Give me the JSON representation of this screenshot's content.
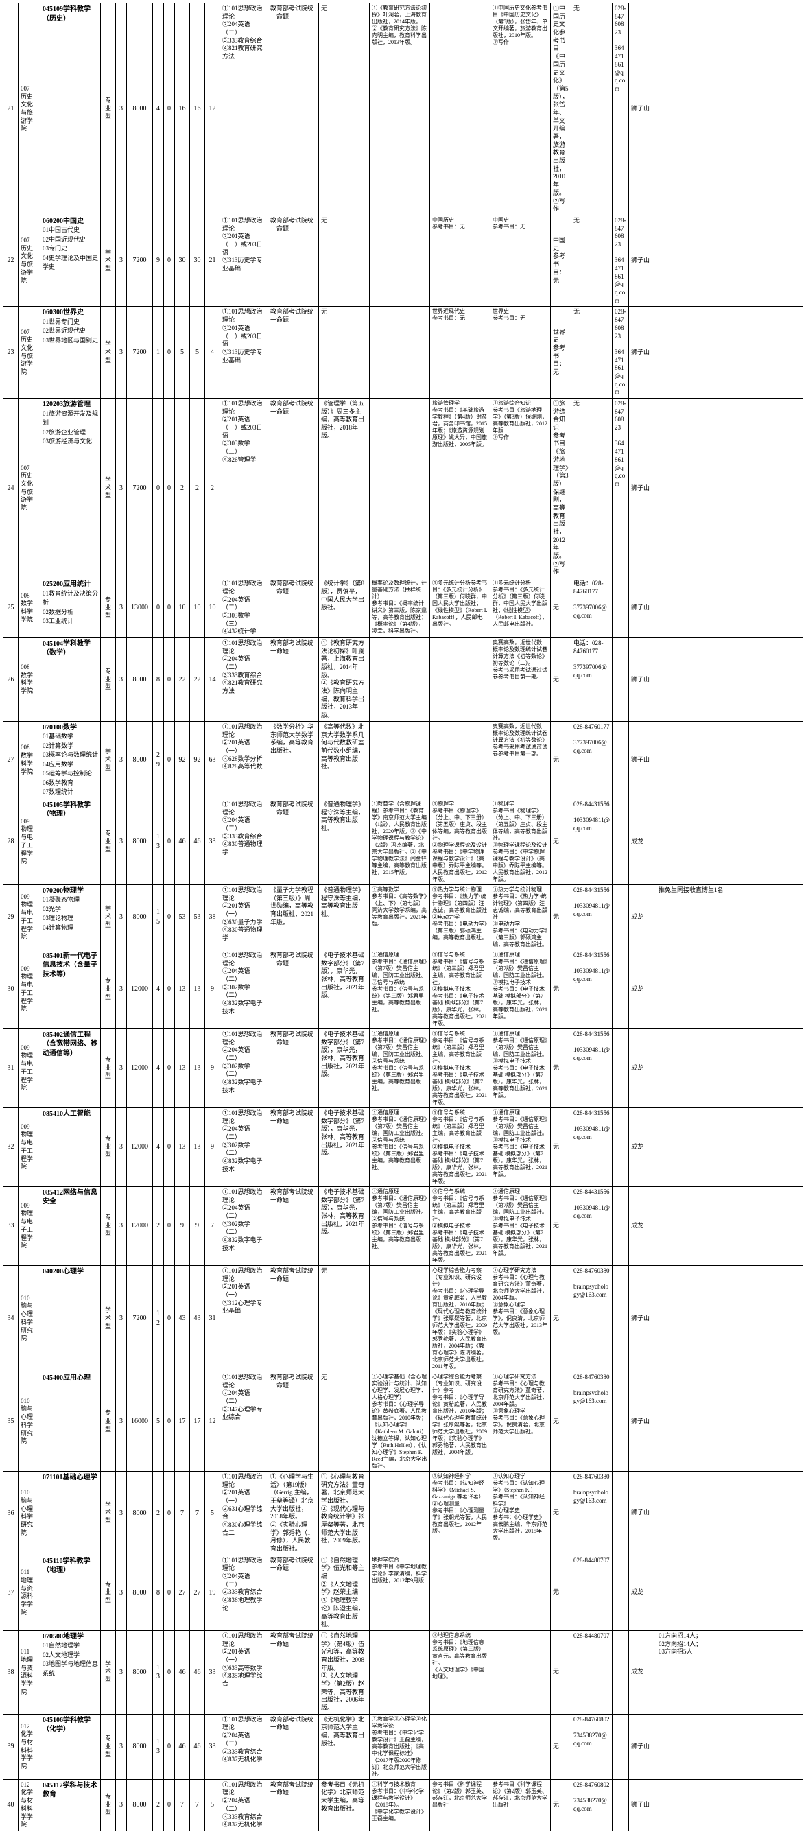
{
  "cols": {
    "w": [
      22,
      32,
      88,
      22,
      16,
      38,
      16,
      16,
      22,
      22,
      22,
      70,
      74,
      74,
      88,
      88,
      88,
      30,
      60,
      24,
      40
    ]
  },
  "rows": [
    {
      "n": "21",
      "dept": "007\n历史文化与旅游学院",
      "major_title": "045109学科教学（历史）",
      "major_sub": "",
      "type": "专业型",
      "yr": "3",
      "fee": "8000",
      "a": "4",
      "b": "0",
      "c": "16",
      "d": "16",
      "e": "12",
      "exam": "①101思想政治理论\n②204英语（二）\n③333教育综合\n④821教育研究方法",
      "c13": "教育部考试院统一命题",
      "c14": "无",
      "c15": "①《教育研究方法论初探》叶澜著，上海教育出版社，2014年版。\n②《教育研究方法》陈向明主编，教育科学出版社，2013年版。",
      "c16": "",
      "c17": "①中国历史文化参考书目《中国历史文化》（第5版），张岱年、单文开编著，旅游教育出版社，2010年版。\n②写作",
      "c18": "①中国历史文化参考书目《中国历史文化》（第5版），张岱年、单文开编著，旅游教育出版社，2010年版。\n②写作",
      "c19": "无",
      "c20": "028-84760823\n\n364471861@qq.com",
      "c21": "狮子山",
      "c22": ""
    },
    {
      "n": "22",
      "dept": "007\n历史文化与旅游学院",
      "major_title": "060200中国史",
      "major_sub": "01中国古代史\n02中国近现代史\n03专门史\n04史学理论及中国史学史",
      "type": "学术型",
      "yr": "3",
      "fee": "7200",
      "a": "9",
      "b": "0",
      "c": "30",
      "d": "30",
      "e": "21",
      "exam": "①101思想政治理论\n②201英语（一）或203日语\n③313历史学专业基础",
      "c13": "教育部考试院统一命题",
      "c14": "无",
      "c15": "",
      "c16": "中国历史\n参考书目：无",
      "c17": "中国史\n参考书目：无",
      "c18": "中国史\n参考书目：无",
      "c19": "无",
      "c20": "028-84760823\n\n364471861@qq.com",
      "c21": "狮子山",
      "c22": ""
    },
    {
      "n": "23",
      "dept": "007\n历史文化与旅游学院",
      "major_title": "060300世界史",
      "major_sub": "01世界专门史\n02世界近现代史\n03世界地区与国别史",
      "type": "学术型",
      "yr": "3",
      "fee": "7200",
      "a": "1",
      "b": "0",
      "c": "5",
      "d": "5",
      "e": "4",
      "exam": "①101思想政治理论\n②201英语（一）或203日语\n③313历史学专业基础",
      "c13": "教育部考试院统一命题",
      "c14": "无",
      "c15": "",
      "c16": "世界近现代史\n参考书目：无",
      "c17": "世界史\n参考书目：无",
      "c18": "世界史\n参考书目：无",
      "c19": "无",
      "c20": "028-84760823\n\n364471861@qq.com",
      "c21": "狮子山",
      "c22": ""
    },
    {
      "n": "24",
      "dept": "007\n历史文化与旅游学院",
      "major_title": "120203旅游管理",
      "major_sub": "01旅游资源开发及规划\n02旅游企业管理\n03旅游经济与文化",
      "type": "学术型",
      "yr": "3",
      "fee": "7200",
      "a": "0",
      "b": "0",
      "c": "2",
      "d": "2",
      "e": "2",
      "exam": "①101思想政治理论\n②201英语（一）或203日语\n③303数学（三）\n④826管理学",
      "c13": "教育部考试院统一命题",
      "c14": "《管理学（第五版）》周三多主编，高等教育出版社，2018年版。",
      "c15": "",
      "c16": "旅游管理学\n参考书目：《基础旅游学教程》（第4版）谢彦君，商务印书馆，2015年版；《旅游资源规划原理》姚大异，中国旅游出版社，2005年版。",
      "c17": "①旅游综合知识\n参考书目《旅游地理学》（第3版）保继刚，高等教育出版社，2012年版\n②写作",
      "c18": "①旅游综合知识\n参考书目《旅游地理学》（第3版）保继刚，高等教育出版社，2012年版。\n②写作",
      "c19": "无",
      "c20": "028-84760823\n\n364471861@qq.com",
      "c21": "狮子山",
      "c22": ""
    },
    {
      "n": "25",
      "dept": "008\n数学科学学院",
      "major_title": "025200应用统计",
      "major_sub": "01教育统计及决策分析\n02数据分析\n03工业统计",
      "type": "专业型",
      "yr": "3",
      "fee": "13000",
      "a": "0",
      "b": "0",
      "c": "10",
      "d": "10",
      "e": "10",
      "exam": "①101思想政治理论\n②204英语（二）\n③303数学（三）\n④432统计学",
      "c13": "教育部考试院统一命题",
      "c14": "《统计学》（第8版），贾俊平，中国人民大学出版社。",
      "c15": "概率论及数理统计，计量基础方法（抽样统计）\n参考书目：《概率统计讲义》第三版，陈家鼎等，高等教育出版社；《概率论》（第4版），凌幸，科学出版社。",
      "c16": "①多元统计分析参考书目：《多元统计分析》（第三版）何晓群，中国人民大学出版社；《线性模型》（Robert I. Kabacoff），人民邮电出版社。",
      "c17": "①多元统计分析\n参考书目：《多元统计分析》（第三版）何晓群，中国人民大学出版社；《线性模型》（Robert I. Kabacoff），人民邮电出版社。",
      "c18": "无",
      "c19": "电话：028-84760177\n\n377397006@qq.com",
      "c20": "",
      "c21": "狮子山",
      "c22": ""
    },
    {
      "n": "26",
      "dept": "008\n数学科学学院",
      "major_title": "045104学科教学（数学）",
      "major_sub": "",
      "type": "专业型",
      "yr": "3",
      "fee": "8000",
      "a": "8",
      "b": "0",
      "c": "22",
      "d": "22",
      "e": "14",
      "exam": "①101思想政治理论\n②204英语（二）\n③333教育综合\n④821教育研究方法",
      "c13": "教育部考试院统一命题",
      "c14": "①《教育研究方法论初探》叶澜著，上海教育出版社，2014年版。\n②《教育研究方法》陈向明主编，教育科学出版社，2013年版。",
      "c15": "",
      "c16": "",
      "c17": "奥赛高数，近世代数\n概率论及数理统计试卷计算方法《初等数论》初等数论（二）。\n参考书采用考试通过试卷参考书目第一部。",
      "c18": "无",
      "c19": "电话：028-84760177\n\n377397006@qq.com",
      "c20": "",
      "c21": "狮子山",
      "c22": ""
    },
    {
      "n": "27",
      "dept": "008\n数学科学学院",
      "major_title": "070100数学",
      "major_sub": "01基础数学\n02计算数学\n03概率论与数理统计\n04应用数学\n05运筹学与控制论\n06数学教育\n07数理统计",
      "type": "学术型",
      "yr": "3",
      "fee": "8000",
      "a": "29",
      "b": "0",
      "c": "92",
      "d": "92",
      "e": "63",
      "exam": "①101思想政治理论\n②201英语（一）\n③628数学分析\n④828高等代数",
      "c13": "《数学分析》华东师范大学数学系编，高等教育出版社。",
      "c14": "《高等代数》北京大学数学系几何与代数教研室前代数小组编，高等教育出版社。",
      "c15": "",
      "c16": "",
      "c17": "奥赛高数，近世代数\n概率论及数理统计试卷计算方法《初等数论》\n参考书采用考试通过试卷参考书目第一部。",
      "c18": "无",
      "c19": "028-84760177\n\n377397006@qq.com",
      "c20": "",
      "c21": "狮子山",
      "c22": ""
    },
    {
      "n": "28",
      "dept": "009\n物理与电子工程学院",
      "major_title": "045105学科教学（物理）",
      "major_sub": "",
      "type": "专业型",
      "yr": "3",
      "fee": "8000",
      "a": "13",
      "b": "0",
      "c": "46",
      "d": "46",
      "e": "33",
      "exam": "①101思想政治理论\n②204英语（二）\n③333教育综合\n④830普通物理学",
      "c13": "教育部考试院统一命题",
      "c14": "《普通物理学》程守洙等主编，高等教育出版社。",
      "c15": "①教育学（含物理课程）参考书目：《教育学》南京师范大学主编（1版），人民教育出版社，2020年版。②《中学物理课程与教学论》（2版）冯杰编著，北京大学出版社。③《中学物理教学法》闫金铎等主编，高等教育出版社，2015年版。",
      "c16": "①物理学\n参考书目《物理学》（分上、中、下三册）（第五版）庄贞、段主体等编，高等教育出版社。\n②物理学课程论及设计\n参考书目：《中学物理课程与教学设计》（高中版）乔际平主编等。人民教育出版社，2012年版。",
      "c17": "①物理学\n参考书目《物理学》（分上、中、下三册）（第五版）庄贞、段主体等编，高等教育出版社。\n②物理学课程论及设计\n参考书目：《中学物理课程与教学设计》（高中版）乔际平主编等。人民教育出版社，2012年版。",
      "c18": "无",
      "c19": "028-84431556\n\n1033094811@qq.com",
      "c20": "",
      "c21": "成龙",
      "c22": ""
    },
    {
      "n": "29",
      "dept": "009\n物理与电子工程学院",
      "major_title": "070200物理学",
      "major_sub": "01凝聚态物理\n02光学\n03理论物理\n04计算物理",
      "type": "学术型",
      "yr": "3",
      "fee": "8000",
      "a": "15",
      "b": "0",
      "c": "53",
      "d": "53",
      "e": "38",
      "exam": "①101思想政治理论\n②201英语（一）\n③630量子力学\n④830普通物理学",
      "c13": "《量子力学教程（第三版）》周世勋编，高等教育出版社，2021年版。",
      "c14": "《普通物理学》程守洙等主编，高等教育出版社。",
      "c15": "①高等数学\n参考书目：《高等数学》（上、下）（第七版）同济大学数学系编，高等教育出版社，2021年版。",
      "c16": "①热力学与统计物理\n参考书目：《热力学·统计物理》（第四版）汪志诚，高等教育出版社\n②电动力学\n参考书目：《电动力学》（第三版）郭硕鸿主编，高等教育出版社。",
      "c17": "①热力学与统计物理\n参考书目：《热力学·统计物理》（第四版）汪志诚编，高等教育出版社\n②电动力学\n参考书目：《电动力学》（第三版）郭硕鸿主编，高等教育出版社。",
      "c18": "无",
      "c19": "028-84431556\n\n1033094811@qq.com",
      "c20": "",
      "c21": "成龙",
      "c22": "推免生同接收直博生1名"
    },
    {
      "n": "30",
      "dept": "009\n物理与电子工程学院",
      "major_title": "085401新一代电子信息技术（含量子技术等）",
      "major_sub": "",
      "type": "专业型",
      "yr": "3",
      "fee": "12000",
      "a": "4",
      "b": "0",
      "c": "13",
      "d": "13",
      "e": "9",
      "exam": "①101思想政治理论\n②204英语（二）\n③302数学（二）\n④832数字电子技术",
      "c13": "教育部考试院统一命题",
      "c14": "《电子技术基础 数字部分》（第7版），康华光，张林，高等教育出版社，2021年版。",
      "c15": "①通信原理\n参考书目：《通信原理》（第7版）樊昌信主编，国防工业出版社。\n②信号与系统\n参考书目：《信号与系统》（第三版）郑君里主编，高等教育出版社。",
      "c16": "①信号与系统\n参考书目：《信号与系统》（第三版）郑君里主编，高等教育出版社。\n②模拟电子技术\n参考书目：《电子技术基础 模拟部分》（第7版），康华光，张林，高等教育出版社，2021年版。",
      "c17": "①通信原理\n参考书目：《通信原理》（第7版）樊昌信主编，国防工业出版社。\n②模拟电子技术\n参考书目：《电子技术基础 模拟部分》（第7版），康华光，张林，高等教育出版社，2021年版。",
      "c18": "无",
      "c19": "028-84431556\n\n1033094811@qq.com",
      "c20": "",
      "c21": "成龙",
      "c22": ""
    },
    {
      "n": "31",
      "dept": "009\n物理与电子工程学院",
      "major_title": "085402通信工程（含宽带网络、移动通信等）",
      "major_sub": "",
      "type": "专业型",
      "yr": "3",
      "fee": "12000",
      "a": "4",
      "b": "0",
      "c": "13",
      "d": "13",
      "e": "9",
      "exam": "①101思想政治理论\n②204英语（二）\n③302数学（二）\n④832数字电子技术",
      "c13": "教育部考试院统一命题",
      "c14": "《电子技术基础 数字部分》（第7版），康华光，张林，高等教育出版社，2021年版。",
      "c15": "①通信原理\n参考书目：《通信原理》（第7版）樊昌信主编，国防工业出版社。\n②信号与系统\n参考书目：《信号与系统》（第三版）郑君里主编，高等教育出版社。",
      "c16": "①信号与系统\n参考书目：《信号与系统》（第三版）郑君里主编，高等教育出版社。\n②模拟电子技术\n参考书目：《电子技术基础 模拟部分》（第7版），康华光，张林，高等教育出版社，2021年版。",
      "c17": "①通信原理\n参考书目：《通信原理》（第7版）樊昌信主编，国防工业出版社。\n②模拟电子技术\n参考书目：《电子技术基础 模拟部分》（第7版），康华光，张林，高等教育出版社，2021年版。",
      "c18": "无",
      "c19": "028-84431556\n\n1033094811@qq.com",
      "c20": "",
      "c21": "成龙",
      "c22": ""
    },
    {
      "n": "32",
      "dept": "009\n物理与电子工程学院",
      "major_title": "085410人工智能",
      "major_sub": "",
      "type": "专业型",
      "yr": "3",
      "fee": "12000",
      "a": "4",
      "b": "0",
      "c": "13",
      "d": "13",
      "e": "9",
      "exam": "①101思想政治理论\n②204英语（二）\n③302数学（二）\n④832数字电子技术",
      "c13": "教育部考试院统一命题",
      "c14": "《电子技术基础 数字部分》（第7版），康华光，张林，高等教育出版社，2021年版。",
      "c15": "①通信原理\n参考书目：《通信原理》（第7版）樊昌信主编，国防工业出版社。\n②信号与系统\n参考书目：《信号与系统》（第三版）郑君里主编，高等教育出版社。",
      "c16": "①信号与系统\n参考书目：《信号与系统》（第三版）郑君里主编，高等教育出版社。\n②模拟电子技术\n参考书目：《电子技术基础 模拟部分》（第7版），康华光，张林，高等教育出版社，2021年版。",
      "c17": "①通信原理\n参考书目：《通信原理》（第7版）樊昌信主编，国防工业出版社。\n②模拟电子技术\n参考书目：《电子技术基础 模拟部分》（第7版），康华光，张林，高等教育出版社，2021年版。",
      "c18": "无",
      "c19": "028-84431556\n\n1033094811@qq.com",
      "c20": "",
      "c21": "成龙",
      "c22": ""
    },
    {
      "n": "33",
      "dept": "009\n物理与电子工程学院",
      "major_title": "085412网络与信息安全",
      "major_sub": "",
      "type": "专业型",
      "yr": "3",
      "fee": "12000",
      "a": "2",
      "b": "0",
      "c": "9",
      "d": "9",
      "e": "7",
      "exam": "①101思想政治理论\n②204英语（二）\n③302数学（二）\n④832数字电子技术",
      "c13": "教育部考试院统一命题",
      "c14": "《电子技术基础 数字部分》（第7版），康华光，张林，高等教育出版社，2021年版。",
      "c15": "①通信原理\n参考书目：《通信原理》（第7版）樊昌信主编，国防工业出版社。\n②信号与系统\n参考书目：《信号与系统》（第三版）郑君里主编，高等教育出版社。",
      "c16": "①信号与系统\n参考书目：《信号与系统》（第三版）郑君里主编，高等教育出版社。\n②模拟电子技术\n参考书目：《电子技术基础 模拟部分》（第7版），康华光，张林，高等教育出版社，2021年版。",
      "c17": "①通信原理\n参考书目：《通信原理》（第7版）樊昌信主编，国防工业出版社。\n②模拟电子技术\n参考书目：《电子技术基础 模拟部分》（第7版），康华光，张林，高等教育出版社，2021年版。",
      "c18": "无",
      "c19": "028-84431556\n\n1033094811@qq.com",
      "c20": "",
      "c21": "成龙",
      "c22": ""
    },
    {
      "n": "34",
      "dept": "010\n脑与心理科学研究院",
      "major_title": "040200心理学",
      "major_sub": "",
      "type": "学术型",
      "yr": "3",
      "fee": "7200",
      "a": "12",
      "b": "0",
      "c": "43",
      "d": "43",
      "e": "31",
      "exam": "①101思想政治理论\n②201英语（一）\n③312心理学专业基础",
      "c13": "教育部考试院统一命题",
      "c14": "无",
      "c15": "",
      "c16": "心理学综合能力考察（专业知识、研究设计）\n参考书目：《心理学导论》黄希庭著，人民教育出版社，2010年版；《现代心理与教育统计学》张厚粲等著，北京师范大学出版社，2009年版；《实验心理学》郭秀艳著，人民教育出版社，2004年版；《教育心理学》陈琦编著，北京师范大学出版社，2011年版。",
      "c17": "①心理学研究方法\n参考书目：《心理与教育研究方法》董奇著，北京师范大学出版社，2004年版。\n②意象心理学\n参考书目：《意象心理学》，倪良清，北京师范大学出版社，2013年版。",
      "c18": "无",
      "c19": "028-84760380\n\nbrainpsychology@163.com",
      "c20": "",
      "c21": "狮子山",
      "c22": ""
    },
    {
      "n": "35",
      "dept": "010\n脑与心理科学研究院",
      "major_title": "045400应用心理",
      "major_sub": "",
      "type": "专业型",
      "yr": "3",
      "fee": "16000",
      "a": "5",
      "b": "0",
      "c": "17",
      "d": "17",
      "e": "12",
      "exam": "①101思想政治理论\n②204英语（二）\n③347心理学专业综合",
      "c13": "教育部考试院统一命题",
      "c14": "无",
      "c15": "①心理学基础（含心理实验设计与统计、认知心理学、发展心理学、人格心理学）\n参考书目：《心理学导论》黄希庭著，人民教育出版社，2010年版；《认知心理学》（Kathleen M. Galotti）沈德立等译，认知心理学（Ruth Heliler）；《认知心理学》Stephen K. Reed主编，北京大学出版社。",
      "c16": "心理学综合能力考察（专业知识、研究设计）参考\n参考书目：《心理学导论》黄希庭著，人民教育出版社，2010年版；《现代心理与教育统计学》张厚粲等著，北京师范大学出版社，2009年版；《实验心理学》郭秀艳著，人民教育出版社，2004年版。",
      "c17": "①心理学研究方法\n参考书目：《心理与教育研究方法》董奇著，北京师范大学出版社，2004年版。\n②意象心理学\n参考书目：《意象心理学》，倪良清著，北京师范大学出版社。",
      "c18": "无",
      "c19": "028-84760380\n\nbrainpsychology@163.com",
      "c20": "",
      "c21": "狮子山",
      "c22": ""
    },
    {
      "n": "36",
      "dept": "010\n脑与心理科学研究院",
      "major_title": "071101基础心理学",
      "major_sub": "",
      "type": "学术型",
      "yr": "3",
      "fee": "8000",
      "a": "2",
      "b": "0",
      "c": "7",
      "d": "7",
      "e": "5",
      "exam": "①101思想政治理论\n②201英语（一）\n③631心理学综合一\n④830心理学综合二",
      "c13": "①《心理学与生活》（第19版）（Gerrig 主编，王垒等译）北京大学出版社，2018年版。\n②《实验心理学》郭秀艳（1月修），人民教育出版社。",
      "c14": "①《心理与教育研究方法》董奇著，北京师范大学出版社。\n②《现代心理与教育统计学》张厚粲等著，北京师范大学出版社，2009年版。",
      "c15": "",
      "c16": "①认知神经科学\n参考书目：《认知神经科学》（Michael S. Gazzaniga 等著译著）\n②心理测量\n参考书目：《心理测量学》张朝光等著，人民教育出版社，2012年版。",
      "c17": "①认知心理学\n参考书目：《认知心理学》（Stephen K.）\n参考书目：《认知神经科学》\n②心理学史\n参考书：《心理学史》高云鹏主编，华东师范大学出版社，2015年版。",
      "c18": "无",
      "c19": "028-84760380\n\nbrainpsychology@163.com",
      "c20": "",
      "c21": "狮子山",
      "c22": ""
    },
    {
      "n": "37",
      "dept": "011\n地理与资源科学学院",
      "major_title": "045110学科教学（地理）",
      "major_sub": "",
      "type": "专业型",
      "yr": "3",
      "fee": "8000",
      "a": "8",
      "b": "0",
      "c": "27",
      "d": "27",
      "e": "19",
      "exam": "①101思想政治理论\n②204英语（二）\n③333教育综合\n④836地理教学论",
      "c13": "教育部考试院统一命题",
      "c14": "①《自然地理学》伍光和等主编\n②《人文地理学》赵荣主编\n③《地理教学论》陈澄主编，高等教育出版社。",
      "c15": "地理学综合\n参考书目《中学地理教学论》李家清编，科学出版社，2012年9月版",
      "c16": "",
      "c17": "",
      "c18": "无",
      "c19": "028-84480707",
      "c20": "",
      "c21": "成龙",
      "c22": ""
    },
    {
      "n": "38",
      "dept": "011\n地理与资源科学学院",
      "major_title": "070500地理学",
      "major_sub": "01自然地理学\n02人文地理学\n03地图学与地理信息系统",
      "type": "学术型",
      "yr": "3",
      "fee": "8000",
      "a": "13",
      "b": "0",
      "c": "46",
      "d": "46",
      "e": "33",
      "exam": "①101思想政治理论\n②201英语（一）\n③633高等数学\n④835地理学综合",
      "c13": "教育部考试院统一命题",
      "c14": "①《自然地理学》（第4版）伍光和等，高等教育出版社，2008年版。\n②《人文地理学》（第2版）赵荣等，高等教育出版社，2006年版。",
      "c15": "",
      "c16": "①地理信息系统\n参考书目：《地理信息系统原理》（第三版）黄杏元，高等教育出版社。\n《人文地理学》《中国地理》。",
      "c17": "",
      "c18": "无",
      "c19": "028-84480707",
      "c20": "",
      "c21": "成龙",
      "c22": "01方向招14人；\n02方向招14人；\n03方向招5人"
    },
    {
      "n": "39",
      "dept": "012\n化学与材料科学学院",
      "major_title": "045106学科教学（化学）",
      "major_sub": "",
      "type": "专业型",
      "yr": "3",
      "fee": "8000",
      "a": "13",
      "b": "0",
      "c": "46",
      "d": "46",
      "e": "33",
      "exam": "①101思想政治理论\n②204英语（二）\n③333教育综合\n④837无机化学",
      "c13": "教育部考试院统一命题",
      "c14": "《无机化学》北京师范大学主编，高等教育出版社。",
      "c15": "①教育学②心理学③化学教学论\n参考书目：《中学化学教学设计》王磊主编，高等教育出版社；《高中化学课程标准》（2017年版2020年修订）北京师范大学出版社。",
      "c16": "",
      "c17": "",
      "c18": "无",
      "c19": "028-84760802\n\n734538270@qq.com",
      "c20": "",
      "c21": "狮子山",
      "c22": ""
    },
    {
      "n": "40",
      "dept": "012\n化学与材料科学学院",
      "major_title": "045117学科与技术教育",
      "major_sub": "",
      "type": "专业型",
      "yr": "3",
      "fee": "8000",
      "a": "2",
      "b": "0",
      "c": "7",
      "d": "7",
      "e": "5",
      "exam": "①101思想政治理论\n②204英语（二）\n③333教育综合\n④837无机化学",
      "c13": "教育部考试院统一命题",
      "c14": "参考书目《无机化学》北京师范大学主编，高等教育出版社。",
      "c15": "①科学与技术教育\n参考书目：《中学化学课程与教学设计》（2018年）。\n《中学化学教学设计》王磊主编。",
      "c16": "参考书目《科学课程论》（第2版）郭玉英、郝存江，北京师范大学出版社",
      "c17": "参考书目《科学课程论》（第2版）郭玉英、郝存江，北京师范大学出版社",
      "c18": "无",
      "c19": "028-84760802\n\n734538270@qq.com",
      "c20": "",
      "c21": "狮子山",
      "c22": ""
    }
  ]
}
